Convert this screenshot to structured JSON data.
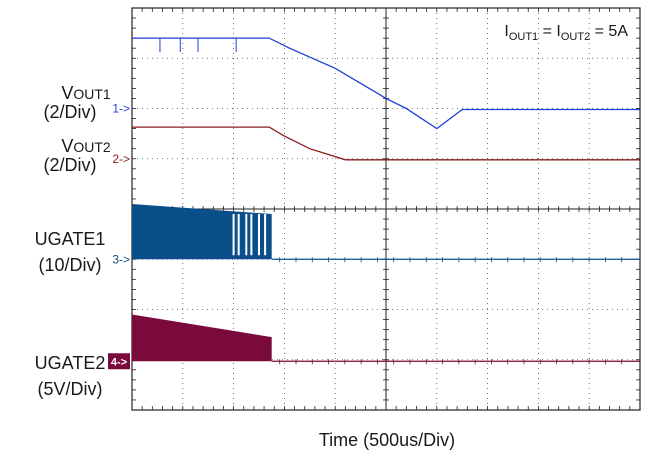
{
  "chart_data": {
    "type": "line",
    "title": "",
    "annotation": {
      "text": "I",
      "sub1": "OUT1",
      "eq": " = I",
      "sub2": "OUT2",
      "tail": " = 5A"
    },
    "xlabel": "Time  (500us/Div)",
    "x_divisions": 10,
    "y_divisions": 8,
    "grid": true,
    "x_units": "div",
    "y_units": "div",
    "channels": [
      {
        "id": "1",
        "marker": "1->",
        "label": "V",
        "label_sub": "OUT1",
        "scale": "(2/Div)",
        "color": "#1f3fd6",
        "kind": "trace",
        "ref_div": 6.0,
        "x": [
          0,
          2.7,
          3.1,
          4.0,
          5.0,
          5.4,
          6.0,
          6.5,
          10
        ],
        "y": [
          7.4,
          7.4,
          7.2,
          6.8,
          6.2,
          6.0,
          5.6,
          5.98,
          5.98
        ]
      },
      {
        "id": "2",
        "marker": "2->",
        "label": "V",
        "label_sub": "OUT2",
        "scale": "(2/Div)",
        "color": "#8b1a1a",
        "kind": "trace",
        "ref_div": 5.0,
        "x": [
          0,
          2.7,
          3.0,
          3.5,
          4.2,
          5.0,
          10
        ],
        "y": [
          5.63,
          5.63,
          5.45,
          5.2,
          4.98,
          4.98,
          4.98
        ]
      },
      {
        "id": "3",
        "marker": "3->",
        "label": "UGATE1",
        "scale": "(10/Div)",
        "color": "#0b4f8a",
        "kind": "switching",
        "ref_div": 3.0,
        "x_start": 0,
        "x_end": 2.75,
        "high_start": 4.1,
        "high_end": 3.9,
        "low": 3.0
      },
      {
        "id": "4",
        "marker": "4->",
        "label": "UGATE2",
        "scale": "(5V/Div)",
        "color": "#7a0a3c",
        "kind": "switching",
        "ref_div": 0.97,
        "x_start": 0,
        "x_end": 2.75,
        "high_start": 1.9,
        "high_end": 1.45,
        "low": 0.97
      }
    ]
  }
}
